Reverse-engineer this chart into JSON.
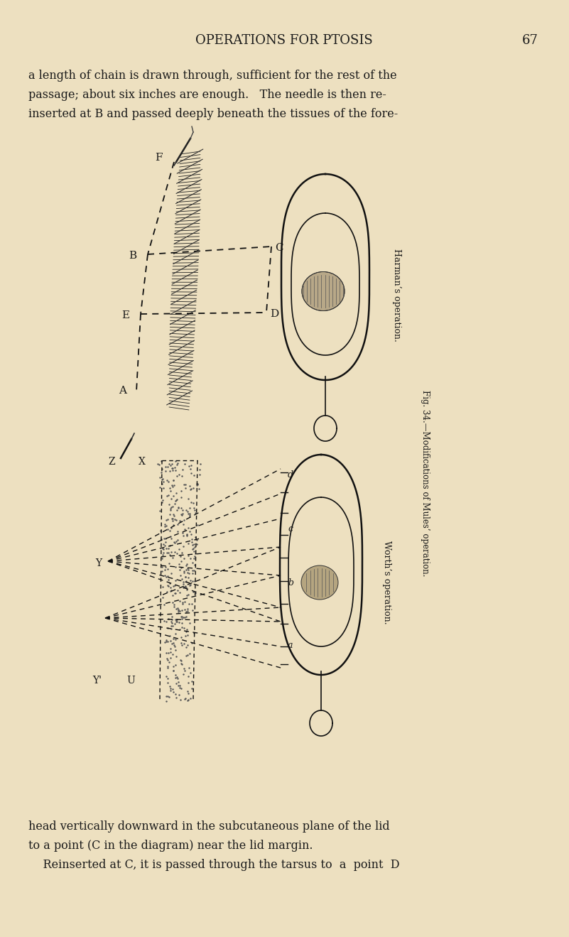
{
  "bg_color": "#ede0c0",
  "page_title": "OPERATIONS FOR PTOSIS",
  "page_number": "67",
  "title_fontsize": 13,
  "body_fontsize": 11.5,
  "text_color": "#1a1a1a",
  "top_text_lines": [
    "a length of chain is drawn through, sufficient for the rest of the",
    "passage; about six inches are enough.   The needle is then re-",
    "inserted at B and passed deeply beneath the tissues of the fore-"
  ],
  "bottom_text_lines": [
    "head vertically downward in the subcutaneous plane of the lid",
    "to a point (C in the diagram) near the lid margin.",
    "    Reinserted at C, it is passed through the tarsus to  a  point  D"
  ],
  "side_text_harman": "Harman’s operation.",
  "side_text_worth": "Worth’s operation.",
  "fig_caption": "Fig. 34.—Modifications of Mules’ operation."
}
